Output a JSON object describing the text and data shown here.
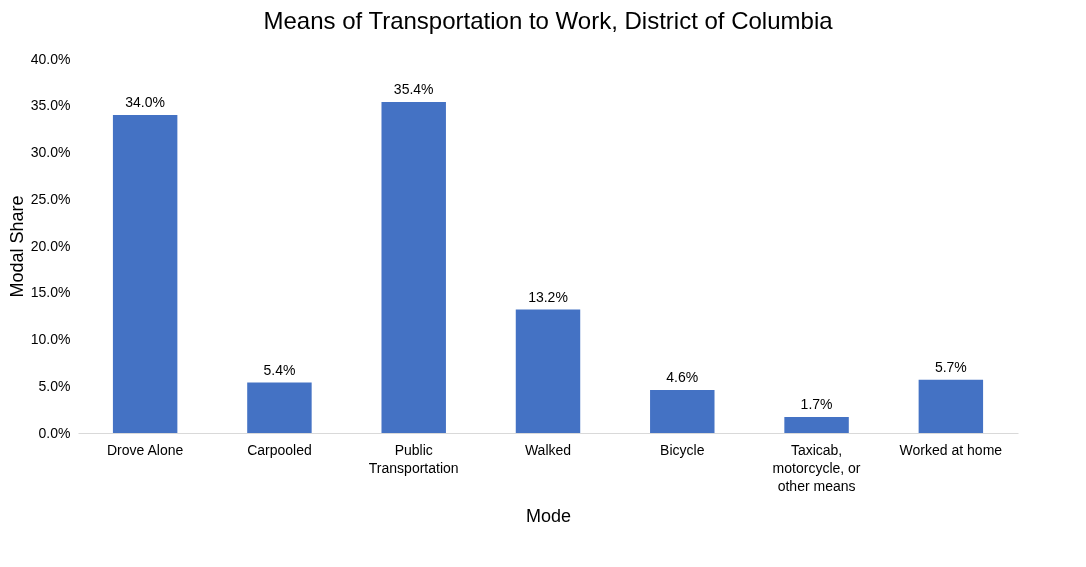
{
  "chart_data": {
    "type": "bar",
    "title": "Means of Transportation to Work, District of Columbia",
    "xlabel": "Mode",
    "ylabel": "Modal Share",
    "categories": [
      "Drove Alone",
      "Carpooled",
      "Public Transportation",
      "Walked",
      "Bicycle",
      "Taxicab, motorcycle, or other means",
      "Worked at home"
    ],
    "values": [
      34.0,
      5.4,
      35.4,
      13.2,
      4.6,
      1.7,
      5.7
    ],
    "value_labels": [
      "34.0%",
      "5.4%",
      "35.4%",
      "13.2%",
      "4.6%",
      "1.7%",
      "5.7%"
    ],
    "color": "#4472c4",
    "ylim": [
      0,
      40
    ],
    "yticks": [
      {
        "value": 0,
        "label": "0.0%"
      },
      {
        "value": 5,
        "label": "5.0%"
      },
      {
        "value": 10,
        "label": "10.0%"
      },
      {
        "value": 15,
        "label": "15.0%"
      },
      {
        "value": 20,
        "label": "20.0%"
      },
      {
        "value": 25,
        "label": "25.0%"
      },
      {
        "value": 30,
        "label": "30.0%"
      },
      {
        "value": 35,
        "label": "35.0%"
      },
      {
        "value": 40,
        "label": "40.0%"
      }
    ],
    "grid": false
  }
}
